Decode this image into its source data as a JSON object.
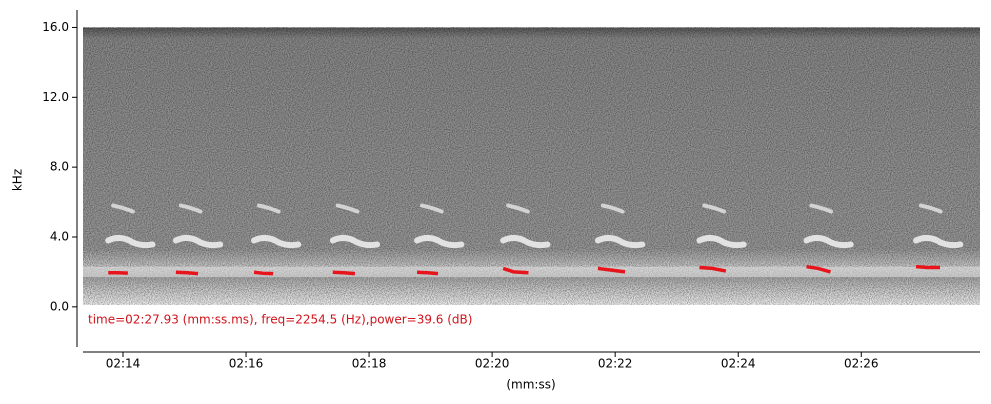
{
  "chart_data": {
    "type": "spectrogram",
    "ylabel": "kHz",
    "xlabel": "(mm:ss)",
    "annotation": "time=02:27.93 (mm:ss.ms), freq=2254.5 (Hz),power=39.6 (dB)",
    "xlim": [
      133.35,
      147.93
    ],
    "ylim": [
      -2.3,
      17
    ],
    "xticks": [
      {
        "value": 134,
        "label": "02:14"
      },
      {
        "value": 136,
        "label": "02:16"
      },
      {
        "value": 138,
        "label": "02:18"
      },
      {
        "value": 140,
        "label": "02:20"
      },
      {
        "value": 142,
        "label": "02:22"
      },
      {
        "value": 144,
        "label": "02:24"
      },
      {
        "value": 146,
        "label": "02:26"
      }
    ],
    "yticks": [
      {
        "value": 0,
        "label": "0.0"
      },
      {
        "value": 4,
        "label": "4.0"
      },
      {
        "value": 8,
        "label": "8.0"
      },
      {
        "value": 12,
        "label": "12.0"
      },
      {
        "value": 16,
        "label": "16.0"
      }
    ],
    "series": [
      {
        "color": "#e8141c",
        "x": [
          133.76,
          133.92,
          134.08,
          null,
          134.86,
          135.04,
          135.22,
          null,
          136.13,
          136.28,
          136.44,
          null,
          137.41,
          137.59,
          137.77,
          null,
          138.78,
          138.95,
          139.12,
          null,
          140.18,
          140.35,
          140.59,
          null,
          141.72,
          141.94,
          142.16,
          null,
          143.37,
          143.58,
          143.8,
          null,
          145.11,
          145.3,
          145.5,
          null,
          146.89,
          147.08,
          147.28
        ],
        "values": [
          1.95,
          1.95,
          1.93,
          null,
          1.98,
          1.95,
          1.9,
          null,
          1.98,
          1.92,
          1.9,
          null,
          1.98,
          1.95,
          1.9,
          null,
          1.98,
          1.95,
          1.9,
          null,
          2.2,
          2.0,
          1.95,
          null,
          2.2,
          2.1,
          2.0,
          null,
          2.25,
          2.2,
          2.05,
          null,
          2.3,
          2.2,
          2.0,
          null,
          2.3,
          2.25,
          2.25
        ]
      }
    ]
  }
}
